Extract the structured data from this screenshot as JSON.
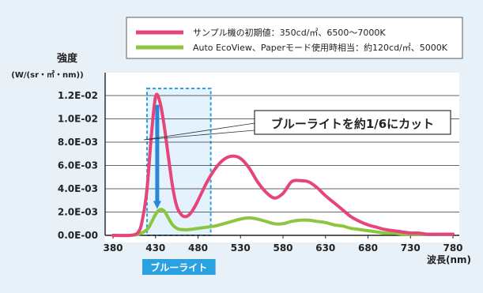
{
  "chart_data": {
    "type": "line",
    "ylabel": "強度",
    "yunit": "(W/(sr・㎡・nm))",
    "xlabel": "波長(nm)",
    "xlim": [
      380,
      780
    ],
    "ylim": [
      0,
      0.012
    ],
    "xticks": [
      380,
      430,
      480,
      530,
      580,
      630,
      680,
      730,
      780
    ],
    "yticks": [
      {
        "value": 0.0,
        "label": "0.0E-00"
      },
      {
        "value": 0.002,
        "label": "2.0E-03"
      },
      {
        "value": 0.004,
        "label": "4.0E-03"
      },
      {
        "value": 0.006,
        "label": "6.0E-03"
      },
      {
        "value": 0.008,
        "label": "8.0E-03"
      },
      {
        "value": 0.01,
        "label": "1.0E-02"
      },
      {
        "value": 0.012,
        "label": "1.2E-02"
      }
    ],
    "legend_position": "top-right",
    "series": [
      {
        "name": "サンプル機の初期値：350cd/㎡、6500〜7000K",
        "color": "#e5457a",
        "x": [
          380,
          400,
          410,
          415,
          420,
          425,
          430,
          435,
          440,
          445,
          450,
          455,
          460,
          465,
          470,
          475,
          480,
          490,
          500,
          510,
          520,
          530,
          540,
          550,
          560,
          570,
          580,
          590,
          600,
          610,
          620,
          630,
          640,
          650,
          660,
          670,
          680,
          690,
          700,
          710,
          720,
          730,
          740,
          750,
          760,
          770,
          780
        ],
        "y": [
          0,
          0,
          0.0003,
          0.0015,
          0.004,
          0.0085,
          0.0119,
          0.0115,
          0.0095,
          0.0068,
          0.0042,
          0.0025,
          0.0018,
          0.0016,
          0.0018,
          0.0023,
          0.003,
          0.0045,
          0.0057,
          0.0065,
          0.0068,
          0.0066,
          0.0058,
          0.0046,
          0.0037,
          0.0032,
          0.0036,
          0.0046,
          0.0047,
          0.0046,
          0.0041,
          0.0034,
          0.0028,
          0.0022,
          0.0016,
          0.0012,
          0.0009,
          0.0007,
          0.0005,
          0.0004,
          0.0003,
          0.0002,
          0.0002,
          0.0001,
          0.0001,
          0.0001,
          0.0001
        ]
      },
      {
        "name": "Auto EcoView、Paperモード使用時相当：約120cd/㎡、5000K",
        "color": "#8cc63e",
        "x": [
          380,
          400,
          410,
          420,
          425,
          430,
          435,
          440,
          445,
          450,
          455,
          460,
          470,
          480,
          490,
          500,
          510,
          520,
          530,
          540,
          550,
          560,
          570,
          580,
          590,
          600,
          610,
          620,
          630,
          640,
          650,
          660,
          670,
          680,
          690,
          700,
          710,
          720,
          730,
          740,
          750,
          760,
          770,
          780
        ],
        "y": [
          0,
          0,
          0.0001,
          0.0005,
          0.0011,
          0.0018,
          0.0022,
          0.0021,
          0.0015,
          0.0009,
          0.0006,
          0.0005,
          0.0005,
          0.0006,
          0.0007,
          0.0008,
          0.001,
          0.0012,
          0.0014,
          0.0015,
          0.0014,
          0.0012,
          0.001,
          0.001,
          0.0012,
          0.0013,
          0.0013,
          0.0012,
          0.0011,
          0.0009,
          0.0008,
          0.0006,
          0.0005,
          0.0004,
          0.0003,
          0.0002,
          0.0002,
          0.0001,
          0.0001,
          0.0001,
          0.0001,
          0.0001,
          0.0001,
          0.0001
        ]
      }
    ],
    "highlight": {
      "xrange": [
        420,
        495
      ],
      "label": "ブルーライト"
    },
    "annotation": {
      "text": "ブルーライトを約1/6にカット",
      "arrow_from": 0.0112,
      "arrow_to": 0.0022,
      "at_x": 432
    }
  }
}
